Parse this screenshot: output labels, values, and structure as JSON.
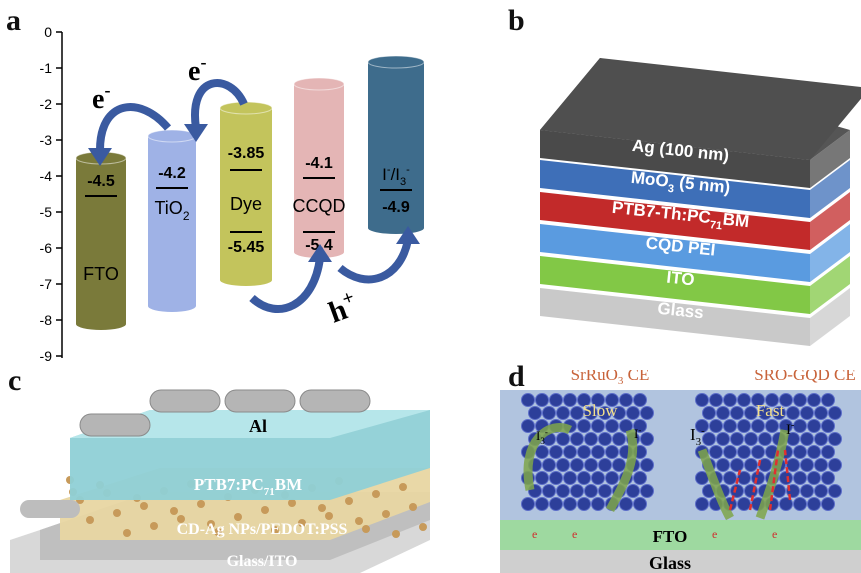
{
  "figure": {
    "panel_a": {
      "label": "a",
      "y_ticks": [
        "0",
        "-1",
        "-2",
        "-3",
        "-4",
        "-5",
        "-6",
        "-7",
        "-8",
        "-9"
      ],
      "columns": [
        {
          "name": "FTO",
          "top_value": "-4.5",
          "bottom_value": "",
          "color": "#7a7a3a"
        },
        {
          "name": "TiO2",
          "top_value": "-4.2",
          "bottom_value": "",
          "color": "#9fb2e6"
        },
        {
          "name": "Dye",
          "top_value": "-3.85",
          "bottom_value": "-5.45",
          "color": "#c3c45c"
        },
        {
          "name": "CCQD",
          "top_value": "-4.1",
          "bottom_value": "-5.4",
          "color": "#e4b5b5"
        },
        {
          "name": "I-/I3-",
          "top_value": "",
          "bottom_value": "-4.9",
          "color": "#3e6c8c"
        }
      ],
      "electron_label": "e",
      "electron_sup": "-",
      "hole_label": "h",
      "hole_sup": "+",
      "tio2_text": "TiO",
      "tio2_sub": "2",
      "redox_I": "I",
      "redox_sup1": "-",
      "redox_slash": "/I",
      "redox_sub": "3",
      "redox_sup2": "-"
    },
    "panel_b": {
      "label": "b",
      "layers": [
        {
          "text": "Ag (100 nm)",
          "color": "#4a4a4a"
        },
        {
          "text": "MoO3 (5 nm)",
          "color": "#3e6fb8"
        },
        {
          "text": "PTB7-Th:PC71BM",
          "color": "#c22a2a"
        },
        {
          "text": "CQD PEI",
          "color": "#5a9be0"
        },
        {
          "text": "ITO",
          "color": "#82c846"
        },
        {
          "text": "Glass",
          "color": "#c9c9c9"
        }
      ],
      "moo3_main": "MoO",
      "moo3_sub": "3",
      "moo3_tail": " (5 nm)",
      "ptb_main": "PTB7-Th:PC",
      "ptb_sub": "71",
      "ptb_tail": "BM"
    },
    "panel_c": {
      "label": "c",
      "top_electrode": "Al",
      "active_main": "PTB7:PC",
      "active_sub": "71",
      "active_tail": "BM",
      "interlayer": "CD-Ag NPs/PEDOT:PSS",
      "substrate": "Glass/ITO"
    },
    "panel_d": {
      "label": "d",
      "left_title_main": "SrRuO",
      "left_title_sub": "3",
      "left_title_tail": " CE",
      "right_title": "SRO-GQD CE",
      "slow": "Slow",
      "fast": "Fast",
      "i3_main": "I",
      "i3_sub": "3",
      "i3_sup": "-",
      "i_main": "I",
      "i_sup": "-",
      "electron": "e",
      "fto": "FTO",
      "glass": "Glass"
    }
  }
}
